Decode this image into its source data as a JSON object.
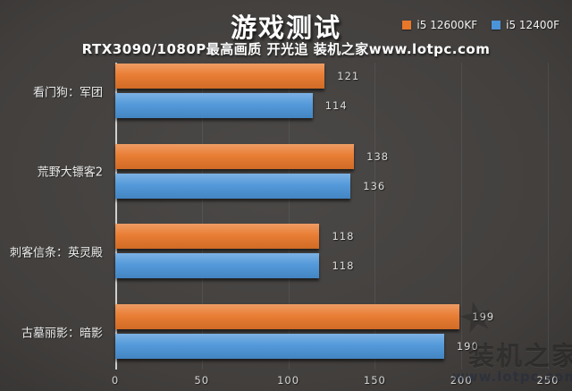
{
  "chart_data": {
    "type": "bar",
    "orientation": "horizontal",
    "title": "游戏测试",
    "subtitle": "RTX3090/1080P最高画质 开光追 装机之家www.lotpc.com",
    "categories": [
      "看门狗：军团",
      "荒野大镖客2",
      "刺客信条：英灵殿",
      "古墓丽影：暗影"
    ],
    "series": [
      {
        "name": "i5 12600KF",
        "color": "#e8772a",
        "values": [
          121,
          138,
          118,
          199
        ]
      },
      {
        "name": "i5 12400F",
        "color": "#4b94d8",
        "values": [
          114,
          136,
          118,
          190
        ]
      }
    ],
    "xlim": [
      0,
      250
    ],
    "xticks": [
      0,
      50,
      100,
      150,
      200,
      250
    ],
    "grid": true,
    "legend_position": "top-right",
    "background": "#3f3d3b"
  },
  "watermark": {
    "logo": "star",
    "text": "装机之家",
    "url": "www.lotpc.com"
  }
}
